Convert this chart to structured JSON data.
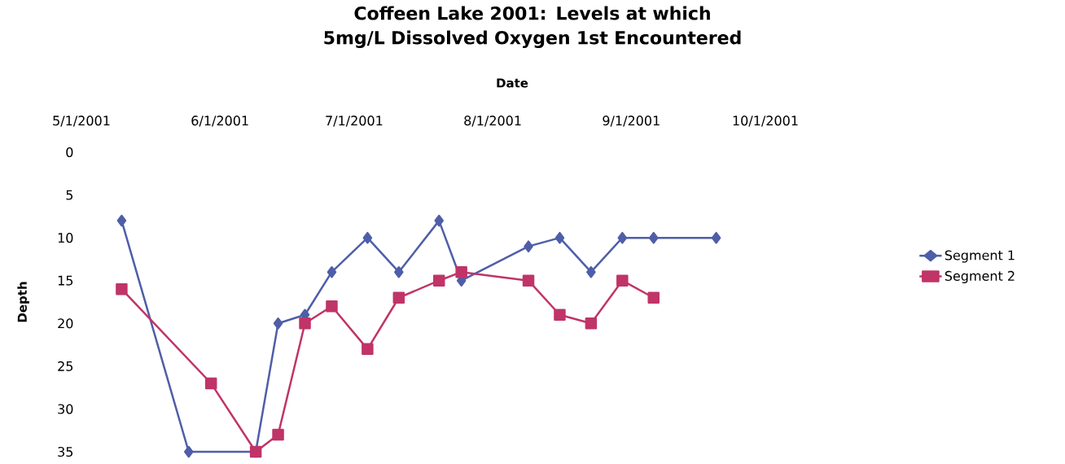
{
  "chart_data": {
    "type": "line",
    "title": "Coffeen Lake 2001: Levels at which 5mg/L Dissolved Oxygen 1st Encountered",
    "xlabel": "Date",
    "ylabel": "Depth",
    "x": [
      "2001-05-10",
      "2001-05-25",
      "2001-06-09",
      "2001-06-14",
      "2001-06-20",
      "2001-06-26",
      "2001-07-04",
      "2001-07-11",
      "2001-07-20",
      "2001-07-25",
      "2001-08-09",
      "2001-08-16",
      "2001-08-23",
      "2001-08-30",
      "2001-09-06",
      "2001-09-20"
    ],
    "series": [
      {
        "name": "Segment 1",
        "color": "#4f5ea8",
        "marker": "diamond",
        "values": [
          8,
          35,
          35,
          20,
          19,
          14,
          10,
          14,
          8,
          15,
          11,
          10,
          14,
          10,
          10,
          10
        ]
      },
      {
        "name": "Segment 2",
        "color": "#c03468",
        "marker": "square",
        "x": [
          "2001-05-10",
          "2001-05-30",
          "2001-06-09",
          "2001-06-14",
          "2001-06-20",
          "2001-06-26",
          "2001-07-04",
          "2001-07-11",
          "2001-07-20",
          "2001-07-25",
          "2001-08-09",
          "2001-08-16",
          "2001-08-23",
          "2001-08-30",
          "2001-09-06"
        ],
        "values": [
          16,
          27,
          35,
          33,
          20,
          18,
          23,
          17,
          15,
          14,
          15,
          19,
          20,
          15,
          17
        ]
      }
    ],
    "xlim": [
      "2001-05-01",
      "2001-10-01"
    ],
    "xticks": [
      {
        "value": "2001-05-01",
        "label": "5/1/2001"
      },
      {
        "value": "2001-06-01",
        "label": "6/1/2001"
      },
      {
        "value": "2001-07-01",
        "label": "7/1/2001"
      },
      {
        "value": "2001-08-01",
        "label": "8/1/2001"
      },
      {
        "value": "2001-09-01",
        "label": "9/1/2001"
      },
      {
        "value": "2001-10-01",
        "label": "10/1/2001"
      }
    ],
    "ylim": [
      35,
      0
    ],
    "yticks": [
      0,
      5,
      10,
      15,
      20,
      25,
      30,
      35
    ],
    "grid": false,
    "legend": "right",
    "line_style": "solid"
  }
}
